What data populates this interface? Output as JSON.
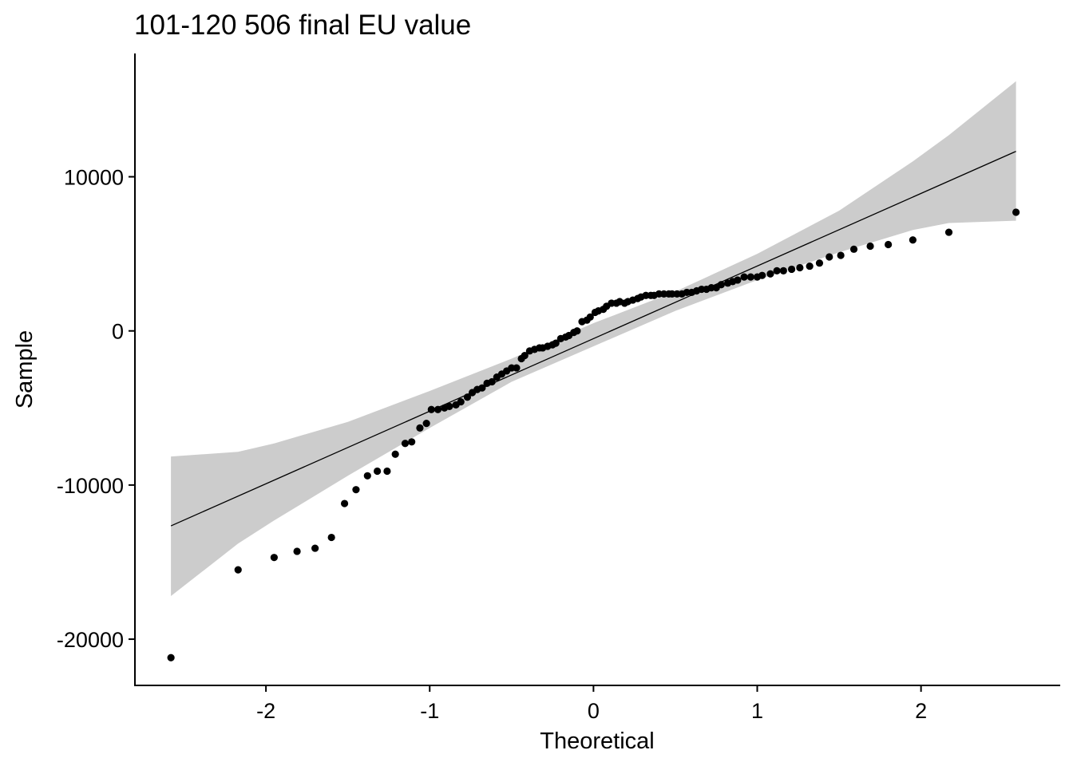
{
  "chart_data": {
    "type": "scatter",
    "title": "101-120 506 final EU value",
    "xlabel": "Theoretical",
    "ylabel": "Sample",
    "xlim": [
      -2.8,
      2.85
    ],
    "ylim": [
      -23000,
      18000
    ],
    "x_ticks": [
      -2,
      -1,
      0,
      1,
      2
    ],
    "x_tick_labels": [
      "-2",
      "-1",
      "0",
      "1",
      "2"
    ],
    "y_ticks": [
      -20000,
      -10000,
      0,
      10000
    ],
    "y_tick_labels": [
      "-20000",
      "-10000",
      "0",
      "10000"
    ],
    "grid": false,
    "colors": {
      "points": "#000000",
      "band": "#cccccc",
      "line": "#000000"
    },
    "reference_line": {
      "x": [
        -2.58,
        2.58
      ],
      "y": [
        -12650,
        11650
      ]
    },
    "confidence_band": {
      "x": [
        -2.58,
        -2.17,
        -1.95,
        -1.5,
        -1.0,
        -0.5,
        0.0,
        0.5,
        1.0,
        1.5,
        1.95,
        2.17,
        2.58
      ],
      "upper": [
        -8150,
        -7850,
        -7300,
        -5900,
        -3900,
        -1800,
        500,
        2550,
        5000,
        7800,
        11000,
        12700,
        16200
      ],
      "lower": [
        -17200,
        -13800,
        -12300,
        -9400,
        -6300,
        -3300,
        -1000,
        1300,
        3300,
        5100,
        6550,
        7000,
        7150
      ]
    },
    "series": [
      {
        "x": [
          -2.58,
          -2.17,
          -1.95,
          -1.81,
          -1.7,
          -1.6,
          -1.52,
          -1.45,
          -1.38,
          -1.32,
          -1.26,
          -1.21,
          -1.15,
          -1.11,
          -1.06,
          -1.02,
          -0.99,
          -0.95,
          -0.91,
          -0.88,
          -0.84,
          -0.81,
          -0.77,
          -0.74,
          -0.71,
          -0.68,
          -0.65,
          -0.62,
          -0.59,
          -0.56,
          -0.53,
          -0.5,
          -0.47,
          -0.44,
          -0.42,
          -0.39,
          -0.36,
          -0.33,
          -0.31,
          -0.28,
          -0.25,
          -0.23,
          -0.2,
          -0.17,
          -0.15,
          -0.12,
          -0.1,
          -0.07,
          -0.04,
          -0.02,
          0.01,
          0.03,
          0.06,
          0.08,
          0.11,
          0.14,
          0.16,
          0.19,
          0.21,
          0.24,
          0.27,
          0.29,
          0.32,
          0.35,
          0.37,
          0.4,
          0.43,
          0.46,
          0.48,
          0.51,
          0.54,
          0.57,
          0.6,
          0.63,
          0.66,
          0.69,
          0.72,
          0.75,
          0.78,
          0.82,
          0.85,
          0.88,
          0.92,
          0.96,
          1.0,
          1.03,
          1.08,
          1.12,
          1.16,
          1.21,
          1.26,
          1.32,
          1.38,
          1.44,
          1.51,
          1.59,
          1.69,
          1.8,
          1.95,
          2.17,
          2.58
        ],
        "y": [
          -21200,
          -15500,
          -14700,
          -14300,
          -14100,
          -13400,
          -11200,
          -10300,
          -9400,
          -9100,
          -9100,
          -8000,
          -7300,
          -7200,
          -6300,
          -6000,
          -5100,
          -5100,
          -5000,
          -4900,
          -4800,
          -4600,
          -4300,
          -4000,
          -3800,
          -3700,
          -3400,
          -3300,
          -3000,
          -2800,
          -2600,
          -2400,
          -2400,
          -1800,
          -1600,
          -1300,
          -1200,
          -1100,
          -1100,
          -1000,
          -900,
          -800,
          -500,
          -400,
          -300,
          -100,
          0,
          600,
          700,
          900,
          1200,
          1300,
          1400,
          1600,
          1800,
          1800,
          1900,
          1800,
          1900,
          2000,
          2100,
          2200,
          2300,
          2300,
          2300,
          2400,
          2400,
          2400,
          2400,
          2400,
          2400,
          2500,
          2500,
          2600,
          2700,
          2700,
          2800,
          2800,
          3000,
          3100,
          3200,
          3300,
          3500,
          3500,
          3500,
          3600,
          3700,
          3900,
          3900,
          4000,
          4100,
          4200,
          4400,
          4800,
          4900,
          5300,
          5500,
          5600,
          5900,
          6400,
          7700
        ]
      }
    ]
  }
}
